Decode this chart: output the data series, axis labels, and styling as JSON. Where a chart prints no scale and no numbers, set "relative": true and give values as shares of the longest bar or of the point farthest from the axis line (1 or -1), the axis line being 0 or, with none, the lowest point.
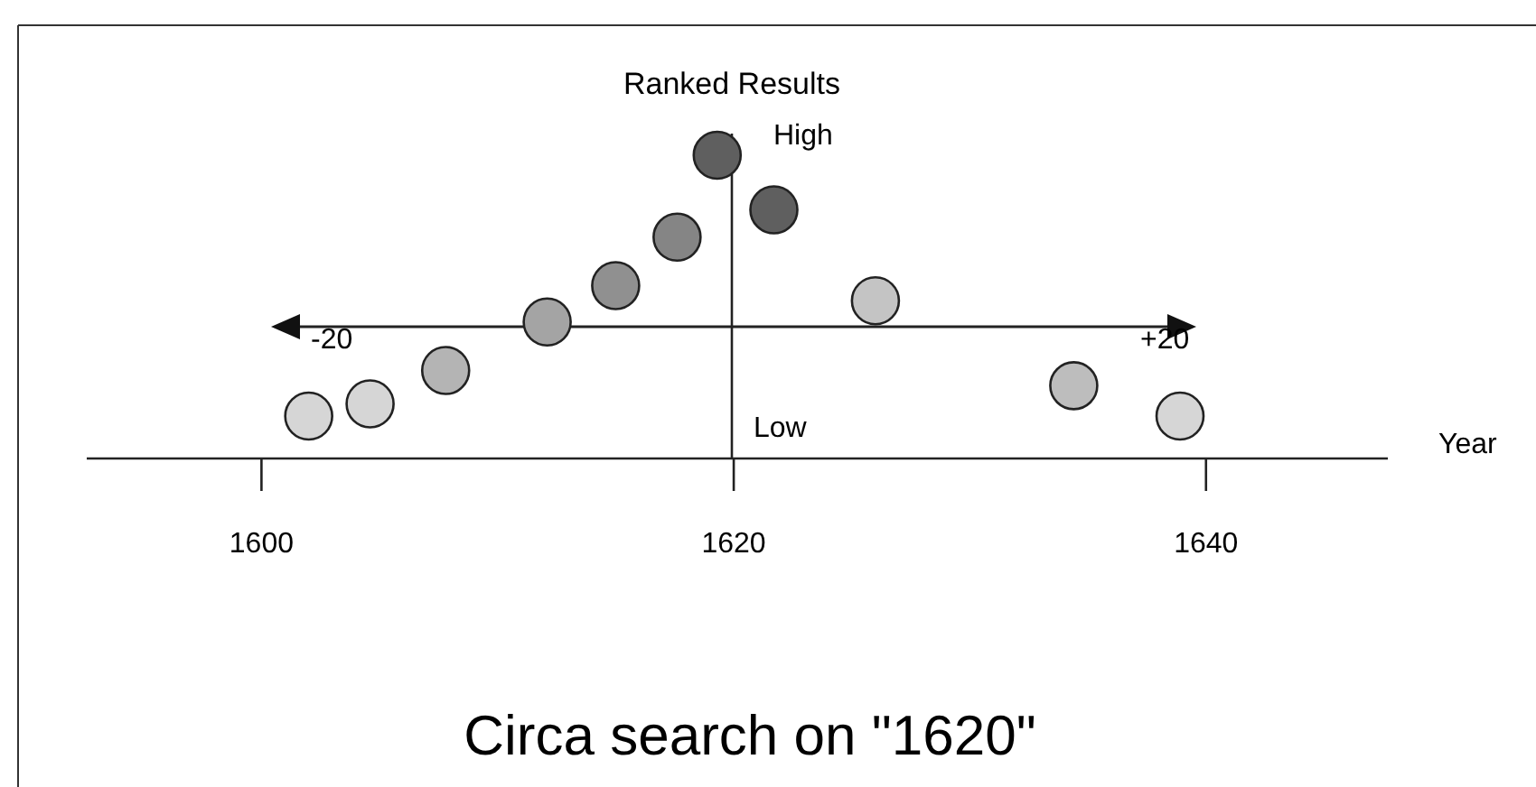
{
  "chart_data": {
    "type": "scatter",
    "relative": true,
    "title": "Circa search on \"1620\"",
    "xlabel": "Year",
    "ylabel": "Ranked Results",
    "x": [
      1602,
      1604.6,
      1607.8,
      1612.1,
      1615,
      1617.6,
      1619.3,
      1621.7,
      1626,
      1634.4,
      1638.9
    ],
    "values": [
      0.14,
      0.18,
      0.29,
      0.45,
      0.57,
      0.73,
      1,
      0.82,
      0.52,
      0.24,
      0.14
    ],
    "colors": [
      "#d6d6d6",
      "#d6d6d6",
      "#b4b4b4",
      "#a4a4a4",
      "#909090",
      "#858585",
      "#5f5f5f",
      "#5f5f5f",
      "#c4c4c4",
      "#bdbdbd",
      "#d6d6d6"
    ],
    "xlim": [
      1592.6,
      1647.7
    ],
    "xticks": [
      1600,
      1620,
      1640
    ],
    "marker": "circle",
    "annotations": [
      "High",
      "Low",
      "-20",
      "+20"
    ]
  }
}
